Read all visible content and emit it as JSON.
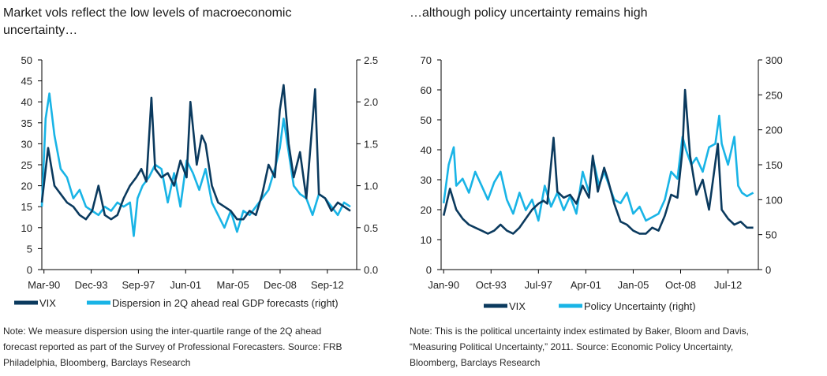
{
  "colors": {
    "vix": "#0b3a5e",
    "dispersion": "#19b4e6",
    "policy": "#19b4e6",
    "axis": "#000000"
  },
  "chart_data": [
    {
      "type": "line",
      "title": "Market vols reflect the low levels of macroeconomic uncertainty…",
      "title_lines": [
        "Market vols reflect the low levels of macroeconomic",
        "uncertainty…"
      ],
      "x_tick_labels": [
        "Mar-90",
        "Dec-93",
        "Sep-97",
        "Jun-01",
        "Mar-05",
        "Dec-08",
        "Sep-12"
      ],
      "xlim": [
        1990.0,
        2015.0
      ],
      "x_ticks": [
        1990.17,
        1993.92,
        1997.67,
        2001.42,
        2005.17,
        2008.92,
        2012.67
      ],
      "ylim_left": [
        0,
        50
      ],
      "y_ticks_left": [
        0,
        5,
        10,
        15,
        20,
        25,
        30,
        35,
        40,
        45,
        50
      ],
      "ylim_right": [
        0.0,
        2.5
      ],
      "y_ticks_right": [
        "0.0",
        "0.5",
        "1.0",
        "1.5",
        "2.0",
        "2.5"
      ],
      "series": [
        {
          "name": "VIX",
          "axis": "left",
          "x": [
            1990.0,
            1990.5,
            1991.0,
            1991.5,
            1992.0,
            1992.5,
            1993.0,
            1993.5,
            1994.0,
            1994.5,
            1995.0,
            1995.5,
            1996.0,
            1996.5,
            1997.0,
            1997.5,
            1997.9,
            1998.3,
            1998.7,
            1999.0,
            1999.5,
            2000.0,
            2000.5,
            2001.0,
            2001.5,
            2001.8,
            2002.3,
            2002.7,
            2003.0,
            2003.5,
            2004.0,
            2004.5,
            2005.0,
            2005.5,
            2006.0,
            2006.5,
            2007.0,
            2007.5,
            2008.0,
            2008.5,
            2008.9,
            2009.2,
            2009.6,
            2010.0,
            2010.5,
            2011.0,
            2011.7,
            2012.0,
            2012.5,
            2013.0,
            2013.5,
            2014.0,
            2014.5
          ],
          "values": [
            16,
            29,
            20,
            18,
            16,
            15,
            13,
            12,
            14,
            20,
            13,
            12,
            13,
            17,
            20,
            22,
            24,
            21,
            41,
            24,
            22,
            23,
            20,
            26,
            22,
            40,
            25,
            32,
            30,
            20,
            16,
            15,
            14,
            12,
            12,
            14,
            13,
            18,
            25,
            22,
            38,
            44,
            30,
            22,
            28,
            17,
            43,
            18,
            17,
            14,
            16,
            15,
            14
          ]
        },
        {
          "name": "Dispersion in 2Q ahead real GDP forecasts (right)",
          "axis": "right",
          "x": [
            1990.0,
            1990.3,
            1990.6,
            1991.0,
            1991.5,
            1992.0,
            1992.5,
            1993.0,
            1993.5,
            1994.0,
            1994.5,
            1995.0,
            1995.5,
            1996.0,
            1996.5,
            1997.0,
            1997.3,
            1997.6,
            1998.0,
            1998.5,
            1999.0,
            1999.5,
            2000.0,
            2000.5,
            2001.0,
            2001.5,
            2002.0,
            2002.5,
            2003.0,
            2003.5,
            2004.0,
            2004.5,
            2005.0,
            2005.5,
            2006.0,
            2006.5,
            2007.0,
            2007.5,
            2008.0,
            2008.5,
            2008.9,
            2009.2,
            2009.6,
            2010.0,
            2010.5,
            2011.0,
            2011.5,
            2012.0,
            2012.5,
            2013.0,
            2013.5,
            2014.0,
            2014.5
          ],
          "values": [
            0.75,
            1.8,
            2.1,
            1.6,
            1.2,
            1.1,
            0.85,
            0.95,
            0.75,
            0.7,
            0.65,
            0.75,
            0.7,
            0.8,
            0.75,
            0.8,
            0.4,
            0.85,
            1.0,
            1.1,
            1.25,
            1.2,
            0.8,
            1.15,
            0.75,
            1.3,
            1.15,
            0.95,
            1.2,
            0.8,
            0.65,
            0.5,
            0.7,
            0.45,
            0.7,
            0.65,
            0.75,
            0.85,
            0.95,
            1.2,
            1.45,
            1.8,
            1.4,
            1.0,
            0.9,
            0.85,
            0.65,
            0.9,
            0.85,
            0.75,
            0.65,
            0.8,
            0.75
          ]
        }
      ],
      "legend": [
        "VIX",
        "Dispersion in 2Q ahead real GDP forecasts (right)"
      ],
      "note_lines": [
        "Note: We measure dispersion using the inter-quartile range of the 2Q ahead",
        "forecast reported as part of the Survey of Professional Forecasters. Source: FRB",
        "Philadelphia, Bloomberg, Barclays Research"
      ]
    },
    {
      "type": "line",
      "title": "…although policy uncertainty remains high",
      "title_lines": [
        "…although policy uncertainty remains high"
      ],
      "x_tick_labels": [
        "Jan-90",
        "Oct-93",
        "Jul-97",
        "Apr-01",
        "Jan-05",
        "Oct-08",
        "Jul-12"
      ],
      "xlim": [
        1989.8,
        2014.9
      ],
      "x_ticks": [
        1990.0,
        1993.75,
        1997.5,
        2001.25,
        2005.0,
        2008.75,
        2012.5
      ],
      "ylim_left": [
        0,
        70
      ],
      "y_ticks_left": [
        0,
        10,
        20,
        30,
        40,
        50,
        60,
        70
      ],
      "ylim_right": [
        0,
        300
      ],
      "y_ticks_right": [
        "0",
        "50",
        "100",
        "150",
        "200",
        "250",
        "300"
      ],
      "series": [
        {
          "name": "VIX",
          "axis": "left",
          "x": [
            1990.0,
            1990.5,
            1991.0,
            1991.5,
            1992.0,
            1992.5,
            1993.0,
            1993.5,
            1994.0,
            1994.5,
            1995.0,
            1995.5,
            1996.0,
            1996.5,
            1997.0,
            1997.5,
            1997.9,
            1998.2,
            1998.7,
            1999.0,
            1999.5,
            2000.0,
            2000.5,
            2001.0,
            2001.5,
            2001.8,
            2002.2,
            2002.7,
            2003.0,
            2003.5,
            2004.0,
            2004.5,
            2005.0,
            2005.5,
            2006.0,
            2006.5,
            2007.0,
            2007.5,
            2008.0,
            2008.5,
            2008.9,
            2009.1,
            2009.5,
            2010.0,
            2010.5,
            2011.0,
            2011.7,
            2012.0,
            2012.5,
            2013.0,
            2013.5,
            2014.0,
            2014.5
          ],
          "values": [
            18,
            27,
            20,
            17,
            15,
            14,
            13,
            12,
            13,
            15,
            13,
            12,
            14,
            17,
            20,
            22,
            23,
            22,
            44,
            26,
            24,
            25,
            22,
            28,
            24,
            38,
            26,
            34,
            30,
            22,
            16,
            15,
            13,
            12,
            12,
            14,
            13,
            18,
            25,
            24,
            40,
            60,
            38,
            25,
            30,
            20,
            42,
            20,
            17,
            15,
            16,
            14,
            14
          ]
        },
        {
          "name": "Policy Uncertainty (right)",
          "axis": "right",
          "x": [
            1990.0,
            1990.4,
            1990.8,
            1991.0,
            1991.5,
            1992.0,
            1992.5,
            1993.0,
            1993.5,
            1994.0,
            1994.5,
            1995.0,
            1995.5,
            1996.0,
            1996.5,
            1997.0,
            1997.5,
            1998.0,
            1998.5,
            1999.0,
            1999.5,
            2000.0,
            2000.5,
            2001.0,
            2001.5,
            2001.8,
            2002.3,
            2002.7,
            2003.0,
            2003.5,
            2004.0,
            2004.5,
            2005.0,
            2005.5,
            2006.0,
            2006.5,
            2007.0,
            2007.5,
            2008.0,
            2008.5,
            2008.9,
            2009.2,
            2009.6,
            2010.0,
            2010.5,
            2011.0,
            2011.5,
            2011.8,
            2012.0,
            2012.5,
            2013.0,
            2013.3,
            2013.6,
            2014.0,
            2014.5
          ],
          "values": [
            95,
            150,
            175,
            120,
            130,
            110,
            140,
            120,
            100,
            125,
            140,
            100,
            80,
            110,
            85,
            100,
            70,
            120,
            90,
            110,
            85,
            105,
            80,
            140,
            110,
            160,
            120,
            140,
            125,
            100,
            95,
            110,
            80,
            90,
            70,
            75,
            80,
            100,
            140,
            130,
            190,
            170,
            150,
            160,
            140,
            175,
            180,
            220,
            180,
            150,
            190,
            120,
            110,
            105,
            110
          ]
        }
      ],
      "legend": [
        "VIX",
        "Policy Uncertainty (right)"
      ],
      "note_lines": [
        "Note: This is the political uncertainty index estimated by Baker, Bloom and Davis,",
        "“Measuring Political Uncertainty,” 2011. Source: Economic Policy Uncertainty,",
        "Bloomberg, Barclays Research"
      ]
    }
  ]
}
